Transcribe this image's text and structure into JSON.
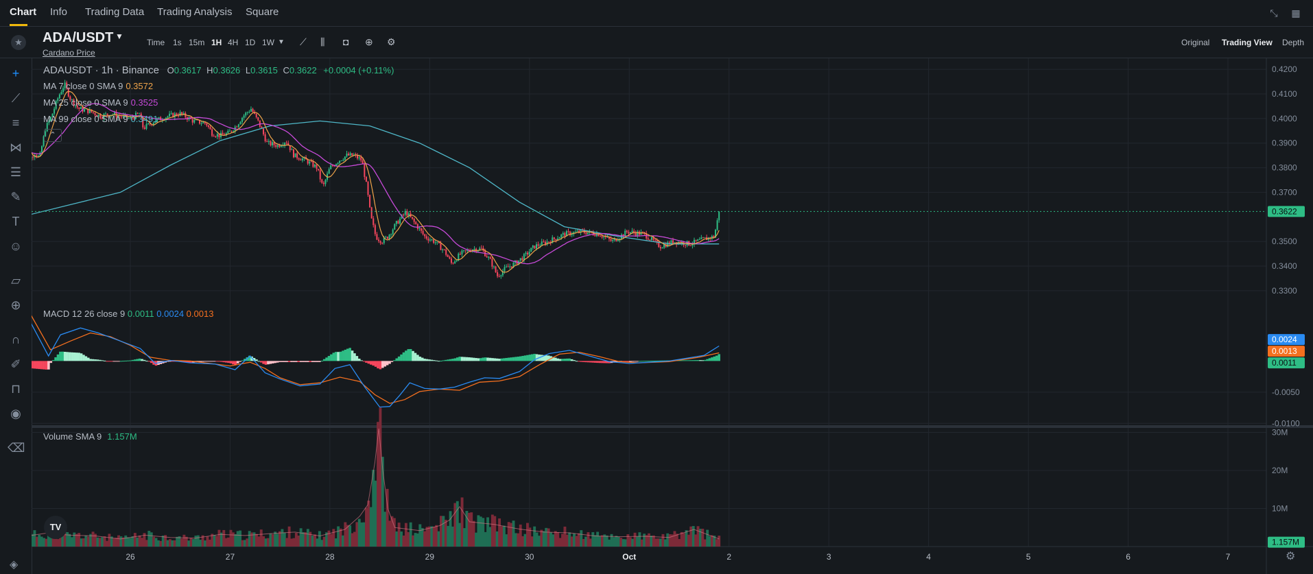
{
  "top_nav": {
    "tabs": [
      "Chart",
      "Info",
      "Trading Data",
      "Trading Analysis",
      "Square"
    ],
    "active_tab": "Chart"
  },
  "symbol": {
    "pair": "ADA/USDT",
    "subtitle": "Cardano Price"
  },
  "intervals": [
    "Time",
    "1s",
    "15m",
    "1H",
    "4H",
    "1D",
    "1W"
  ],
  "selected_interval": "1H",
  "view_modes": [
    "Original",
    "Trading View",
    "Depth"
  ],
  "selected_view": "Trading View",
  "left_tools": [
    "crosshair-icon",
    "trendline-icon",
    "horizontal-lines-icon",
    "pattern-icon",
    "fib-icon",
    "brush-icon",
    "text-icon",
    "emoji-icon",
    "ruler-icon",
    "zoom-in-icon",
    "magnet-icon",
    "lock-drawing-icon",
    "unlock-icon",
    "eye-icon",
    "trash-icon"
  ],
  "legend": {
    "header": {
      "title": "ADAUSDT · 1h · Binance",
      "o_label": "O",
      "o": "0.3617",
      "h_label": "H",
      "h": "0.3626",
      "l_label": "L",
      "l": "0.3615",
      "c_label": "C",
      "c": "0.3622",
      "change": "+0.0004 (+0.11%)"
    },
    "ma7": {
      "label": "MA 7 close 0 SMA 9",
      "value": "0.3572"
    },
    "ma25": {
      "label": "MA 25 close 0 SMA 9",
      "value": "0.3525"
    },
    "ma99": {
      "label": "MA 99 close 0 SMA 9",
      "value": "0.3491"
    },
    "macd": {
      "label": "MACD 12 26 close 9",
      "hist": "0.0011",
      "macd": "0.0024",
      "signal": "0.0013"
    },
    "volume": {
      "label": "Volume SMA 9",
      "value": "1.157M"
    }
  },
  "colors": {
    "up": "#2ebd85",
    "down": "#f6465d",
    "ma7": "#f0a44a",
    "ma25": "#c74ad9",
    "ma99": "#4fb8c9",
    "macd": "#2a8bf2",
    "signal": "#f5701f",
    "grid": "#22272e"
  },
  "chart_data": [
    {
      "type": "candlestick",
      "series_name": "ADAUSDT",
      "x_ticks": [
        "26",
        "27",
        "28",
        "29",
        "30",
        "Oct",
        "2",
        "3",
        "4",
        "5",
        "6",
        "7"
      ],
      "y_ticks": [
        "0.4200",
        "0.4100",
        "0.4000",
        "0.3900",
        "0.3800",
        "0.3700",
        "0.3500",
        "0.3400",
        "0.3300"
      ],
      "ylim": [
        0.3255,
        0.4245
      ],
      "last_price": "0.3622",
      "close_path": [
        [
          0,
          0.391
        ],
        [
          0.08,
          0.383
        ],
        [
          0.14,
          0.386
        ],
        [
          0.19,
          0.384
        ],
        [
          0.25,
          0.396
        ],
        [
          0.31,
          0.401
        ],
        [
          0.38,
          0.409
        ],
        [
          0.44,
          0.414
        ],
        [
          0.5,
          0.408
        ],
        [
          0.58,
          0.404
        ],
        [
          0.69,
          0.403
        ],
        [
          0.8,
          0.401
        ],
        [
          0.9,
          0.402
        ],
        [
          1.0,
          0.401
        ],
        [
          1.1,
          0.4
        ],
        [
          1.19,
          0.402
        ],
        [
          1.23,
          0.396
        ],
        [
          1.34,
          0.399
        ],
        [
          1.48,
          0.401
        ],
        [
          1.6,
          0.402
        ],
        [
          1.73,
          0.399
        ],
        [
          1.86,
          0.398
        ],
        [
          1.92,
          0.394
        ],
        [
          2.0,
          0.393
        ],
        [
          2.08,
          0.394
        ],
        [
          2.16,
          0.397
        ],
        [
          2.23,
          0.401
        ],
        [
          2.31,
          0.404
        ],
        [
          2.39,
          0.398
        ],
        [
          2.47,
          0.39
        ],
        [
          2.58,
          0.389
        ],
        [
          2.66,
          0.391
        ],
        [
          2.74,
          0.385
        ],
        [
          2.86,
          0.383
        ],
        [
          2.97,
          0.38
        ],
        [
          3.03,
          0.372
        ],
        [
          3.1,
          0.38
        ],
        [
          3.19,
          0.383
        ],
        [
          3.27,
          0.385
        ],
        [
          3.34,
          0.385
        ],
        [
          3.42,
          0.383
        ],
        [
          3.47,
          0.372
        ],
        [
          3.51,
          0.36
        ],
        [
          3.56,
          0.352
        ],
        [
          3.62,
          0.35
        ],
        [
          3.68,
          0.352
        ],
        [
          3.76,
          0.357
        ],
        [
          3.86,
          0.362
        ],
        [
          3.96,
          0.357
        ],
        [
          4.05,
          0.352
        ],
        [
          4.15,
          0.35
        ],
        [
          4.25,
          0.346
        ],
        [
          4.32,
          0.341
        ],
        [
          4.41,
          0.345
        ],
        [
          4.53,
          0.347
        ],
        [
          4.62,
          0.347
        ],
        [
          4.71,
          0.342
        ],
        [
          4.78,
          0.336
        ],
        [
          4.86,
          0.339
        ],
        [
          4.95,
          0.341
        ],
        [
          5.05,
          0.344
        ],
        [
          5.15,
          0.348
        ],
        [
          5.29,
          0.35
        ],
        [
          5.45,
          0.353
        ],
        [
          5.61,
          0.354
        ],
        [
          5.8,
          0.353
        ],
        [
          5.93,
          0.35
        ],
        [
          6.08,
          0.354
        ],
        [
          6.25,
          0.353
        ],
        [
          6.41,
          0.348
        ],
        [
          6.55,
          0.35
        ],
        [
          6.71,
          0.349
        ],
        [
          6.85,
          0.351
        ],
        [
          6.95,
          0.352
        ],
        [
          7.0,
          0.3617
        ]
      ]
    },
    {
      "type": "line",
      "series": [
        {
          "name": "MA 7 close 0 SMA 9",
          "indicator": "ma7"
        },
        {
          "name": "MA 25 close 0 SMA 9",
          "indicator": "ma25"
        },
        {
          "name": "MA 99 close 0 SMA 9",
          "points": [
            [
              0,
              0.36
            ],
            [
              0.5,
              0.365
            ],
            [
              1.0,
              0.37
            ],
            [
              1.5,
              0.381
            ],
            [
              2.0,
              0.391
            ],
            [
              2.5,
              0.397
            ],
            [
              3.0,
              0.399
            ],
            [
              3.5,
              0.397
            ],
            [
              4.0,
              0.39
            ],
            [
              4.5,
              0.38
            ],
            [
              5.0,
              0.366
            ],
            [
              5.45,
              0.356
            ],
            [
              6.0,
              0.352
            ],
            [
              6.5,
              0.349
            ],
            [
              7.0,
              0.349
            ]
          ]
        }
      ]
    },
    {
      "type": "macd",
      "y_ticks": [
        "-0.0050",
        "-0.0100"
      ],
      "ylim": [
        -0.0103,
        0.0095
      ],
      "values": {
        "hist": "0.0011",
        "macd": "0.0024",
        "signal": "0.0013"
      },
      "macd_line": [
        [
          0,
          0.009
        ],
        [
          0.08,
          0.0068
        ],
        [
          0.28,
          0.0008
        ],
        [
          0.4,
          0.0042
        ],
        [
          0.6,
          0.0053
        ],
        [
          0.78,
          0.0045
        ],
        [
          1.0,
          0.0032
        ],
        [
          1.2,
          0.002
        ],
        [
          1.35,
          -0.0004
        ],
        [
          1.5,
          0.0001
        ],
        [
          1.7,
          -0.0003
        ],
        [
          1.95,
          -0.0005
        ],
        [
          2.15,
          -0.0014
        ],
        [
          2.3,
          0.0008
        ],
        [
          2.45,
          -0.0019
        ],
        [
          2.6,
          -0.0029
        ],
        [
          2.8,
          -0.004
        ],
        [
          3.0,
          -0.0037
        ],
        [
          3.15,
          -0.0012
        ],
        [
          3.3,
          -0.0006
        ],
        [
          3.45,
          -0.0042
        ],
        [
          3.6,
          -0.0074
        ],
        [
          3.7,
          -0.0073
        ],
        [
          3.8,
          -0.0055
        ],
        [
          3.9,
          -0.0035
        ],
        [
          4.05,
          -0.0044
        ],
        [
          4.2,
          -0.0045
        ],
        [
          4.35,
          -0.0042
        ],
        [
          4.5,
          -0.0034
        ],
        [
          4.65,
          -0.0027
        ],
        [
          4.8,
          -0.0028
        ],
        [
          5.0,
          -0.0017
        ],
        [
          5.15,
          0.0002
        ],
        [
          5.3,
          0.0012
        ],
        [
          5.5,
          0.0017
        ],
        [
          5.7,
          0.0008
        ],
        [
          5.9,
          -0.0001
        ],
        [
          6.1,
          -0.0004
        ],
        [
          6.3,
          -0.0002
        ],
        [
          6.5,
          0.0
        ],
        [
          6.7,
          0.0005
        ],
        [
          6.85,
          0.0009
        ],
        [
          7.0,
          0.0024
        ]
      ],
      "signal_line": [
        [
          0,
          0.009
        ],
        [
          0.1,
          0.0075
        ],
        [
          0.3,
          0.0018
        ],
        [
          0.5,
          0.0032
        ],
        [
          0.7,
          0.0045
        ],
        [
          0.9,
          0.0039
        ],
        [
          1.1,
          0.0025
        ],
        [
          1.3,
          0.0006
        ],
        [
          1.5,
          0.0001
        ],
        [
          1.7,
          0.0
        ],
        [
          1.9,
          -0.0004
        ],
        [
          2.1,
          -0.0008
        ],
        [
          2.3,
          -0.0002
        ],
        [
          2.45,
          -0.0012
        ],
        [
          2.6,
          -0.0027
        ],
        [
          2.8,
          -0.0038
        ],
        [
          3.0,
          -0.0035
        ],
        [
          3.2,
          -0.0026
        ],
        [
          3.4,
          -0.0033
        ],
        [
          3.55,
          -0.0054
        ],
        [
          3.7,
          -0.0068
        ],
        [
          3.85,
          -0.0062
        ],
        [
          4.0,
          -0.0049
        ],
        [
          4.2,
          -0.0045
        ],
        [
          4.4,
          -0.0047
        ],
        [
          4.6,
          -0.0034
        ],
        [
          4.8,
          -0.0032
        ],
        [
          5.0,
          -0.0025
        ],
        [
          5.2,
          -0.0006
        ],
        [
          5.4,
          0.0011
        ],
        [
          5.6,
          0.0014
        ],
        [
          5.8,
          0.0007
        ],
        [
          6.0,
          -0.0001
        ],
        [
          6.2,
          -0.0003
        ],
        [
          6.5,
          -0.0001
        ],
        [
          6.8,
          0.0006
        ],
        [
          7.0,
          0.0013
        ]
      ]
    },
    {
      "type": "area",
      "series_name": "Volume SMA 9",
      "y_ticks": [
        "30M",
        "20M",
        "10M"
      ],
      "ylim": [
        0,
        31000000
      ],
      "last_value": "1.157M",
      "envelope": [
        [
          0,
          2500000
        ],
        [
          0.25,
          3500000
        ],
        [
          0.5,
          3000000
        ],
        [
          0.75,
          2800000
        ],
        [
          1.0,
          2000000
        ],
        [
          1.25,
          3000000
        ],
        [
          1.5,
          2400000
        ],
        [
          1.75,
          2200000
        ],
        [
          2.0,
          3200000
        ],
        [
          2.25,
          2900000
        ],
        [
          2.5,
          3400000
        ],
        [
          2.75,
          3800000
        ],
        [
          3.0,
          2800000
        ],
        [
          3.25,
          4500000
        ],
        [
          3.4,
          8000000
        ],
        [
          3.48,
          11000000
        ],
        [
          3.55,
          22000000
        ],
        [
          3.59,
          31000000
        ],
        [
          3.63,
          20000000
        ],
        [
          3.68,
          10000000
        ],
        [
          3.75,
          5000000
        ],
        [
          4.0,
          4200000
        ],
        [
          4.2,
          5500000
        ],
        [
          4.3,
          7000000
        ],
        [
          4.4,
          10500000
        ],
        [
          4.5,
          6500000
        ],
        [
          4.75,
          5800000
        ],
        [
          5.0,
          4600000
        ],
        [
          5.25,
          3800000
        ],
        [
          5.5,
          3600000
        ],
        [
          5.75,
          2800000
        ],
        [
          6.0,
          2600000
        ],
        [
          6.25,
          2700000
        ],
        [
          6.5,
          2400000
        ],
        [
          6.75,
          4500000
        ],
        [
          7.0,
          2000000
        ]
      ]
    }
  ]
}
